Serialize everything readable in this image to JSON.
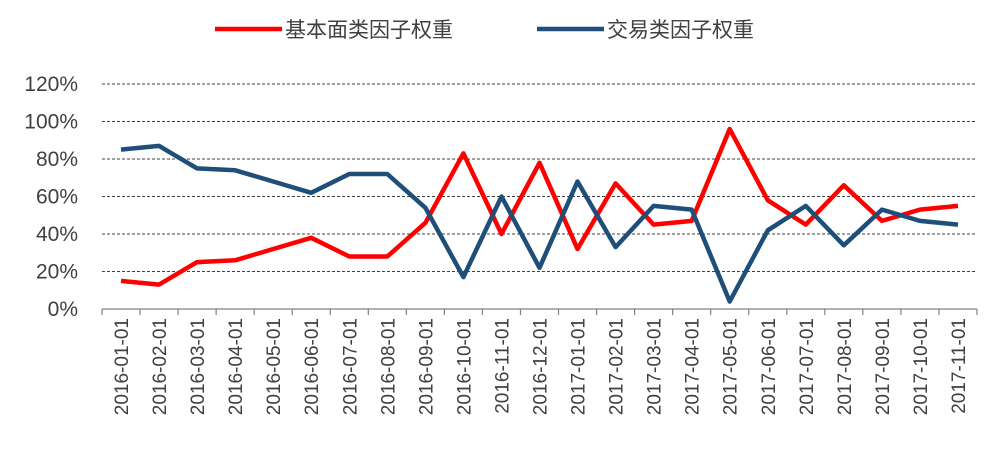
{
  "chart_data": {
    "type": "line",
    "title": "",
    "xlabel": "",
    "ylabel": "",
    "ylim": [
      0,
      120
    ],
    "y_unit": "%",
    "yticks": [
      "0%",
      "20%",
      "40%",
      "60%",
      "80%",
      "100%",
      "120%"
    ],
    "grid": true,
    "legend_position": "top",
    "categories": [
      "2016-01-01",
      "2016-02-01",
      "2016-03-01",
      "2016-04-01",
      "2016-05-01",
      "2016-06-01",
      "2016-07-01",
      "2016-08-01",
      "2016-09-01",
      "2016-10-01",
      "2016-11-01",
      "2016-12-01",
      "2017-01-01",
      "2017-02-01",
      "2017-03-01",
      "2017-04-01",
      "2017-05-01",
      "2017-06-01",
      "2017-07-01",
      "2017-08-01",
      "2017-09-01",
      "2017-10-01",
      "2017-11-01"
    ],
    "series": [
      {
        "name": "基本面类因子权重",
        "color": "#ff0000",
        "values": [
          15,
          13,
          25,
          26,
          32,
          38,
          28,
          28,
          46,
          83,
          40,
          78,
          32,
          67,
          45,
          47,
          96,
          58,
          45,
          66,
          47,
          53,
          55
        ]
      },
      {
        "name": "交易类因子权重",
        "color": "#1f4e79",
        "values": [
          85,
          87,
          75,
          74,
          68,
          62,
          72,
          72,
          54,
          17,
          60,
          22,
          68,
          33,
          55,
          53,
          4,
          42,
          55,
          34,
          53,
          47,
          45
        ]
      }
    ]
  }
}
